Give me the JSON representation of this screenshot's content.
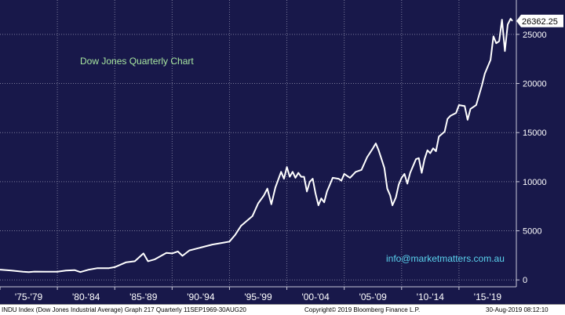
{
  "chart_data": {
    "type": "line",
    "title": "Dow Jones Quarterly Chart",
    "watermark": "info@marketmatters.com.au",
    "last_value_label": "26362.25",
    "y_ticks": [
      "0",
      "5000",
      "10000",
      "15000",
      "20000",
      "25000"
    ],
    "y_tick_values": [
      0,
      5000,
      10000,
      15000,
      20000,
      25000
    ],
    "ylim": [
      -700,
      28500
    ],
    "xlim": [
      1975.0,
      2020.0
    ],
    "x_period_labels": [
      "'75-'79",
      "'80-'84",
      "'85-'89",
      "'90-'94",
      "'95-'99",
      "'00-'04",
      "'05-'09",
      "'10-'14",
      "'15-'19"
    ],
    "grid": true,
    "colors": {
      "background": "#18184a",
      "line": "#ffffff",
      "grid": "#7a7a9a",
      "title": "#a8e6a0",
      "watermark": "#5ad2ee"
    },
    "series": [
      {
        "values": [
          [
            1975.0,
            1050
          ],
          [
            1976.0,
            950
          ],
          [
            1977.0,
            830
          ],
          [
            1977.5,
            800
          ],
          [
            1978.0,
            850
          ],
          [
            1979.0,
            830
          ],
          [
            1980.0,
            840
          ],
          [
            1980.75,
            960
          ],
          [
            1981.5,
            1000
          ],
          [
            1982.0,
            800
          ],
          [
            1982.75,
            1050
          ],
          [
            1983.5,
            1200
          ],
          [
            1984.5,
            1200
          ],
          [
            1985.0,
            1300
          ],
          [
            1986.0,
            1800
          ],
          [
            1986.75,
            1900
          ],
          [
            1987.5,
            2700
          ],
          [
            1987.9,
            1900
          ],
          [
            1988.5,
            2100
          ],
          [
            1989.5,
            2750
          ],
          [
            1990.0,
            2700
          ],
          [
            1990.5,
            2900
          ],
          [
            1990.9,
            2450
          ],
          [
            1991.5,
            3000
          ],
          [
            1992.5,
            3300
          ],
          [
            1993.5,
            3600
          ],
          [
            1994.5,
            3800
          ],
          [
            1995.0,
            3900
          ],
          [
            1995.5,
            4600
          ],
          [
            1996.0,
            5500
          ],
          [
            1996.5,
            6000
          ],
          [
            1997.0,
            6500
          ],
          [
            1997.5,
            7800
          ],
          [
            1998.0,
            8600
          ],
          [
            1998.3,
            9300
          ],
          [
            1998.65,
            7700
          ],
          [
            1999.0,
            9400
          ],
          [
            1999.5,
            11000
          ],
          [
            1999.75,
            10300
          ],
          [
            2000.0,
            11500
          ],
          [
            2000.25,
            10500
          ],
          [
            2000.5,
            11000
          ],
          [
            2000.75,
            10400
          ],
          [
            2001.0,
            10900
          ],
          [
            2001.25,
            10500
          ],
          [
            2001.5,
            10500
          ],
          [
            2001.75,
            9000
          ],
          [
            2002.0,
            10000
          ],
          [
            2002.25,
            10300
          ],
          [
            2002.5,
            8800
          ],
          [
            2002.75,
            7600
          ],
          [
            2003.0,
            8300
          ],
          [
            2003.25,
            7900
          ],
          [
            2003.5,
            9000
          ],
          [
            2003.75,
            9700
          ],
          [
            2004.0,
            10400
          ],
          [
            2004.5,
            10300
          ],
          [
            2004.75,
            10100
          ],
          [
            2005.0,
            10800
          ],
          [
            2005.5,
            10400
          ],
          [
            2006.0,
            11000
          ],
          [
            2006.5,
            11200
          ],
          [
            2007.0,
            12500
          ],
          [
            2007.5,
            13400
          ],
          [
            2007.75,
            13900
          ],
          [
            2008.0,
            13200
          ],
          [
            2008.25,
            12300
          ],
          [
            2008.5,
            11400
          ],
          [
            2008.75,
            9300
          ],
          [
            2009.0,
            8600
          ],
          [
            2009.2,
            7600
          ],
          [
            2009.5,
            8400
          ],
          [
            2009.75,
            9700
          ],
          [
            2010.0,
            10400
          ],
          [
            2010.25,
            10800
          ],
          [
            2010.5,
            9800
          ],
          [
            2010.75,
            10900
          ],
          [
            2011.0,
            11600
          ],
          [
            2011.25,
            12300
          ],
          [
            2011.5,
            12400
          ],
          [
            2011.75,
            10900
          ],
          [
            2012.0,
            12300
          ],
          [
            2012.25,
            13200
          ],
          [
            2012.5,
            12900
          ],
          [
            2012.75,
            13400
          ],
          [
            2013.0,
            13100
          ],
          [
            2013.25,
            14600
          ],
          [
            2013.75,
            15100
          ],
          [
            2014.0,
            16400
          ],
          [
            2014.25,
            16700
          ],
          [
            2014.75,
            17000
          ],
          [
            2015.0,
            17800
          ],
          [
            2015.5,
            17700
          ],
          [
            2015.75,
            16300
          ],
          [
            2016.0,
            17400
          ],
          [
            2016.5,
            17800
          ],
          [
            2017.0,
            19800
          ],
          [
            2017.25,
            21000
          ],
          [
            2017.75,
            22400
          ],
          [
            2018.0,
            24800
          ],
          [
            2018.25,
            24100
          ],
          [
            2018.5,
            24300
          ],
          [
            2018.75,
            26500
          ],
          [
            2019.0,
            23300
          ],
          [
            2019.25,
            26000
          ],
          [
            2019.5,
            26600
          ],
          [
            2019.66,
            26362
          ]
        ]
      }
    ]
  },
  "footer": {
    "left": "INDU Index (Dow Jones Industrial Average) Graph 217  Quarterly 11SEP1969-30AUG20",
    "center": "Copyright© 2019 Bloomberg Finance L.P.",
    "right": "30-Aug-2019 08:12:10"
  }
}
